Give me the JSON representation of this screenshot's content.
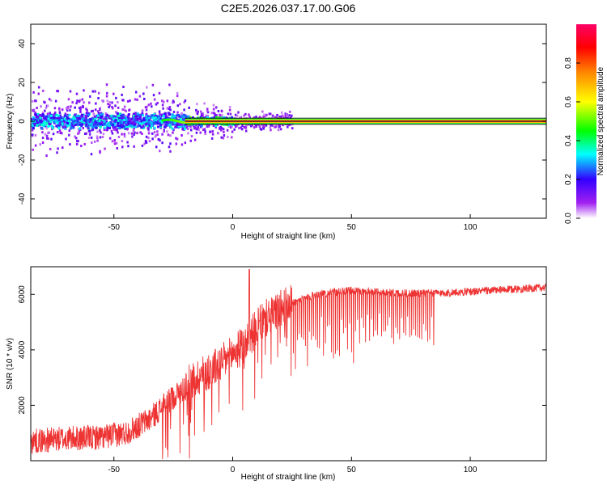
{
  "title": "C2E5.2026.037.17.00.G06",
  "colors": {
    "snr_line": "#ee3333",
    "frame": "#000000"
  },
  "chart_data": [
    {
      "type": "heatmap",
      "name": "spectrogram",
      "xlabel": "Height of straight line (km)",
      "ylabel": "Frequency (Hz)",
      "xlim": [
        -85,
        132
      ],
      "ylim": [
        -50,
        50
      ],
      "xticks": [
        -50,
        0,
        50,
        100
      ],
      "yticks": [
        -40,
        -20,
        0,
        20,
        40
      ],
      "colorbar": {
        "label": "Normalized spectral amplitude",
        "range": [
          0,
          1
        ],
        "ticks": [
          0.0,
          0.2,
          0.4,
          0.6,
          0.8
        ],
        "tick_labels": [
          "0.0",
          "0.2",
          "0.4",
          "0.6",
          "0.8"
        ]
      },
      "description_points": [
        {
          "x_range": [
            -85,
            -20
          ],
          "freq_center": 0,
          "freq_spread": 8,
          "amplitude": 0.2
        },
        {
          "x_range": [
            -20,
            20
          ],
          "freq_center": 0,
          "freq_spread": 2,
          "amplitude": 0.6
        },
        {
          "x_range": [
            20,
            132
          ],
          "freq_center": 0,
          "freq_spread": 1,
          "amplitude": 0.95
        }
      ]
    },
    {
      "type": "line",
      "name": "snr",
      "xlabel": "Height of straight line (km)",
      "ylabel": "SNR (10 * v/v)",
      "xlim": [
        -85,
        132
      ],
      "ylim": [
        0,
        7000
      ],
      "xticks": [
        -50,
        0,
        50,
        100
      ],
      "yticks": [
        2000,
        4000,
        6000
      ],
      "envelope": {
        "x": [
          -85,
          -70,
          -55,
          -45,
          -35,
          -25,
          -15,
          -5,
          5,
          10,
          15,
          25,
          35,
          50,
          70,
          90,
          110,
          132
        ],
        "y": [
          700,
          800,
          850,
          1000,
          1500,
          2300,
          3000,
          3500,
          4200,
          4800,
          5200,
          5700,
          6000,
          6150,
          6050,
          6050,
          6150,
          6250
        ]
      },
      "spike": {
        "x": 7,
        "y": 6900
      }
    }
  ]
}
